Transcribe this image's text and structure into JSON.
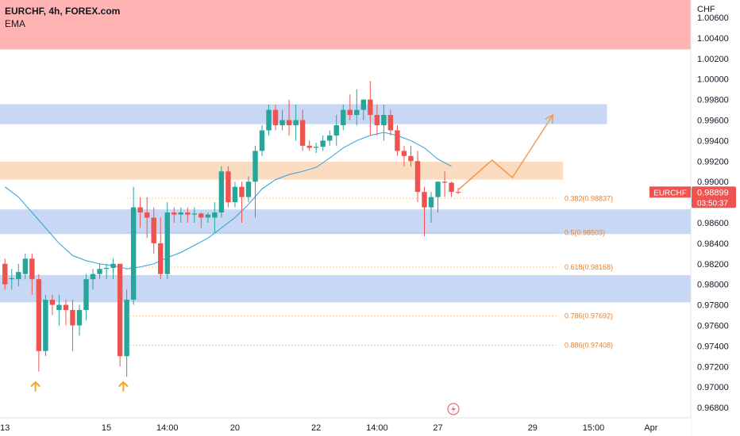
{
  "chart_data": {
    "type": "candlestick",
    "symbol_line": "EURCHF, 4h, FOREX.com",
    "indicator": "EMA",
    "currency_label": "CHF",
    "ylim": [
      0.967,
      1.0077
    ],
    "y_ticks": [
      "1.00600",
      "1.00400",
      "1.00200",
      "1.00000",
      "0.99800",
      "0.99600",
      "0.99400",
      "0.99200",
      "0.99000",
      "0.98800",
      "0.98600",
      "0.98400",
      "0.98200",
      "0.98000",
      "0.97800",
      "0.97600",
      "0.97400",
      "0.97200",
      "0.97000",
      "0.96800"
    ],
    "x_ticks": [
      {
        "bar": 0.5,
        "label": "13"
      },
      {
        "bar": 15.5,
        "label": "15"
      },
      {
        "bar": 24.5,
        "label": "14:00"
      },
      {
        "bar": 34.5,
        "label": "20"
      },
      {
        "bar": 46.5,
        "label": "22"
      },
      {
        "bar": 55.5,
        "label": "14:00"
      },
      {
        "bar": 64.5,
        "label": "27"
      },
      {
        "bar": 78.5,
        "label": "29"
      },
      {
        "bar": 87.5,
        "label": "15:00"
      },
      {
        "bar": 96,
        "label": "Apr"
      }
    ],
    "price_tag": {
      "symbol": "EURCHF",
      "price": "0.98899",
      "countdown": "03:50:37",
      "value": 0.98899
    },
    "zones": [
      {
        "type": "supply",
        "from": 1.00289,
        "to": 1.0077,
        "color": "#ffb3b3"
      },
      {
        "type": "support",
        "from": 0.9956,
        "to": 0.99755,
        "color": "#c8d8f4",
        "x_end_bar": 89.5
      },
      {
        "type": "orange",
        "from": 0.9902,
        "to": 0.99195,
        "color": "#fbdcc1",
        "x_end_bar": 83
      },
      {
        "type": "support",
        "from": 0.9849,
        "to": 0.9873,
        "color": "#c8d8f4"
      },
      {
        "type": "support",
        "from": 0.97825,
        "to": 0.9809,
        "color": "#c8d8f4"
      }
    ],
    "fib_levels": [
      {
        "value": 0.98837,
        "label": "0.382(0.98837)"
      },
      {
        "value": 0.98503,
        "label": "0.5(0.98503)"
      },
      {
        "value": 0.98168,
        "label": "0.618(0.98168)"
      },
      {
        "value": 0.97692,
        "label": "0.786(0.97692)"
      },
      {
        "value": 0.97408,
        "label": "0.886(0.97408)"
      }
    ],
    "fib_line_start_bar": 18.5,
    "candles": [
      [
        0.982,
        0.9825,
        0.9795,
        0.98
      ],
      [
        0.9805,
        0.9815,
        0.9795,
        0.9806
      ],
      [
        0.9805,
        0.982,
        0.9798,
        0.9812
      ],
      [
        0.981,
        0.983,
        0.9805,
        0.9825
      ],
      [
        0.9825,
        0.983,
        0.979,
        0.9805
      ],
      [
        0.9805,
        0.981,
        0.9715,
        0.9735
      ],
      [
        0.9735,
        0.979,
        0.973,
        0.9785
      ],
      [
        0.9785,
        0.979,
        0.977,
        0.978
      ],
      [
        0.9775,
        0.979,
        0.976,
        0.978
      ],
      [
        0.978,
        0.9785,
        0.976,
        0.9775
      ],
      [
        0.9775,
        0.9785,
        0.9735,
        0.976
      ],
      [
        0.976,
        0.978,
        0.975,
        0.9775
      ],
      [
        0.9775,
        0.981,
        0.9765,
        0.9805
      ],
      [
        0.9805,
        0.9815,
        0.9795,
        0.981
      ],
      [
        0.981,
        0.982,
        0.9805,
        0.9815
      ],
      [
        0.9815,
        0.982,
        0.9805,
        0.9816
      ],
      [
        0.9816,
        0.9825,
        0.9805,
        0.982
      ],
      [
        0.982,
        0.982,
        0.972,
        0.973
      ],
      [
        0.973,
        0.9795,
        0.971,
        0.9785
      ],
      [
        0.9785,
        0.9895,
        0.978,
        0.9875
      ],
      [
        0.9875,
        0.9885,
        0.9855,
        0.987
      ],
      [
        0.987,
        0.9885,
        0.9845,
        0.9865
      ],
      [
        0.9865,
        0.9875,
        0.983,
        0.984
      ],
      [
        0.984,
        0.9865,
        0.9805,
        0.981
      ],
      [
        0.981,
        0.988,
        0.9805,
        0.987
      ],
      [
        0.987,
        0.9875,
        0.986,
        0.9868
      ],
      [
        0.9868,
        0.9875,
        0.986,
        0.987
      ],
      [
        0.987,
        0.9875,
        0.986,
        0.9868
      ],
      [
        0.9868,
        0.9875,
        0.986,
        0.9869
      ],
      [
        0.9869,
        0.987,
        0.9855,
        0.9865
      ],
      [
        0.9865,
        0.987,
        0.986,
        0.9868
      ],
      [
        0.9865,
        0.988,
        0.985,
        0.987
      ],
      [
        0.987,
        0.9915,
        0.9865,
        0.991
      ],
      [
        0.991,
        0.9915,
        0.9875,
        0.988
      ],
      [
        0.988,
        0.99,
        0.9875,
        0.9895
      ],
      [
        0.9895,
        0.99,
        0.986,
        0.9885
      ],
      [
        0.9885,
        0.9905,
        0.988,
        0.99
      ],
      [
        0.99,
        0.9935,
        0.9865,
        0.993
      ],
      [
        0.993,
        0.9955,
        0.9925,
        0.995
      ],
      [
        0.995,
        0.9975,
        0.9945,
        0.997
      ],
      [
        0.997,
        0.9975,
        0.995,
        0.9955
      ],
      [
        0.9955,
        0.997,
        0.995,
        0.996
      ],
      [
        0.996,
        0.998,
        0.9945,
        0.9955
      ],
      [
        0.9955,
        0.9975,
        0.994,
        0.996
      ],
      [
        0.996,
        0.997,
        0.993,
        0.9935
      ],
      [
        0.9935,
        0.994,
        0.993,
        0.9933
      ],
      [
        0.9933,
        0.9938,
        0.9928,
        0.9934
      ],
      [
        0.9934,
        0.9945,
        0.993,
        0.994
      ],
      [
        0.994,
        0.995,
        0.9935,
        0.9945
      ],
      [
        0.9945,
        0.9965,
        0.9935,
        0.9955
      ],
      [
        0.9955,
        0.9975,
        0.995,
        0.997
      ],
      [
        0.997,
        0.9985,
        0.996,
        0.9965
      ],
      [
        0.9965,
        0.999,
        0.9955,
        0.997
      ],
      [
        0.997,
        0.998,
        0.996,
        0.998
      ],
      [
        0.998,
        0.9998,
        0.9945,
        0.9965
      ],
      [
        0.9965,
        0.9975,
        0.9945,
        0.9955
      ],
      [
        0.9955,
        0.9975,
        0.994,
        0.9965
      ],
      [
        0.9965,
        0.997,
        0.9945,
        0.995
      ],
      [
        0.995,
        0.9955,
        0.9925,
        0.993
      ],
      [
        0.993,
        0.9935,
        0.9915,
        0.9925
      ],
      [
        0.9925,
        0.9935,
        0.9915,
        0.992
      ],
      [
        0.992,
        0.993,
        0.988,
        0.989
      ],
      [
        0.989,
        0.9895,
        0.9847,
        0.9875
      ],
      [
        0.9875,
        0.989,
        0.986,
        0.9885
      ],
      [
        0.9885,
        0.99,
        0.987,
        0.99
      ],
      [
        0.99,
        0.991,
        0.9885,
        0.9899
      ],
      [
        0.9899,
        0.99,
        0.9885,
        0.989
      ],
      [
        0.989,
        0.9894,
        0.9888,
        0.98899
      ]
    ],
    "ema": [
      [
        0,
        0.9895
      ],
      [
        2,
        0.9885
      ],
      [
        4,
        0.987
      ],
      [
        6,
        0.9855
      ],
      [
        8,
        0.984
      ],
      [
        10,
        0.9828
      ],
      [
        12,
        0.9823
      ],
      [
        14,
        0.982
      ],
      [
        16,
        0.9818
      ],
      [
        17,
        0.9817
      ],
      [
        18,
        0.9815
      ],
      [
        20,
        0.9817
      ],
      [
        22,
        0.982
      ],
      [
        24,
        0.9826
      ],
      [
        26,
        0.9831
      ],
      [
        28,
        0.9838
      ],
      [
        30,
        0.9845
      ],
      [
        32,
        0.9855
      ],
      [
        34,
        0.9865
      ],
      [
        36,
        0.9878
      ],
      [
        38,
        0.9893
      ],
      [
        40,
        0.9902
      ],
      [
        42,
        0.9907
      ],
      [
        44,
        0.991
      ],
      [
        46,
        0.9914
      ],
      [
        48,
        0.9923
      ],
      [
        50,
        0.9933
      ],
      [
        52,
        0.994
      ],
      [
        54,
        0.9945
      ],
      [
        56,
        0.9948
      ],
      [
        58,
        0.9945
      ],
      [
        60,
        0.994
      ],
      [
        62,
        0.9933
      ],
      [
        64,
        0.9922
      ],
      [
        66,
        0.9915
      ]
    ],
    "projection": [
      [
        67.5,
        0.9892
      ],
      [
        72.5,
        0.9921
      ],
      [
        75.5,
        0.9904
      ],
      [
        81.5,
        0.9965
      ]
    ],
    "arrow_markers": [
      5,
      18
    ]
  }
}
